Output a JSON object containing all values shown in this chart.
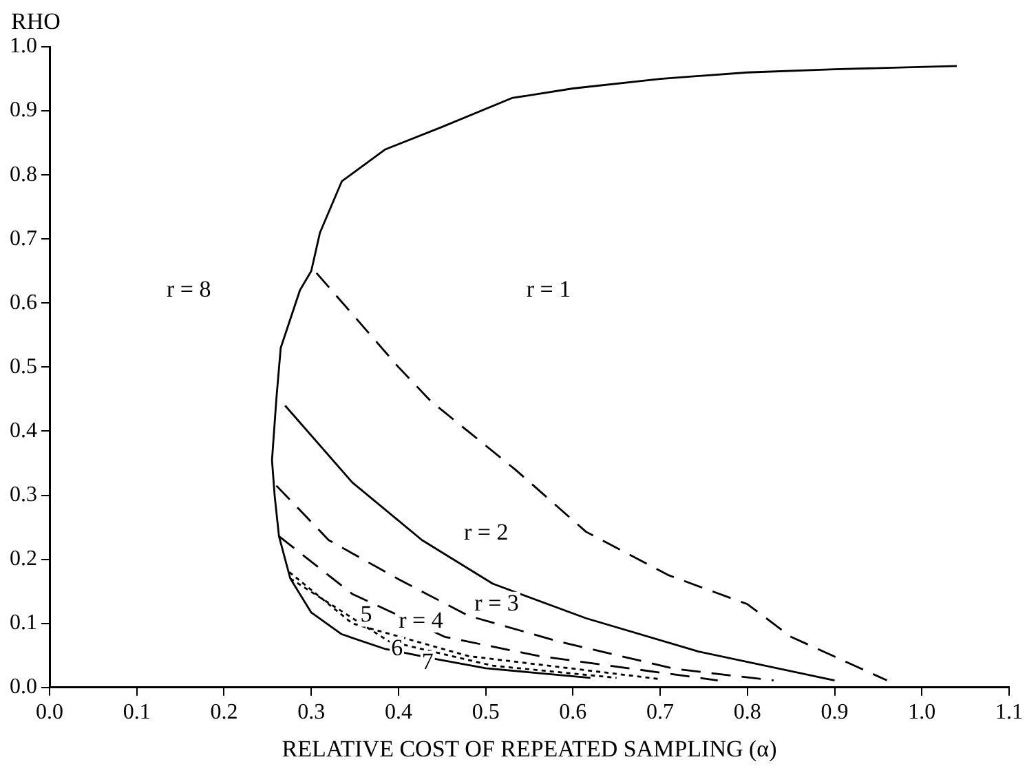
{
  "chart_data": {
    "type": "line",
    "xlabel": "RELATIVE COST OF REPEATED SAMPLING (α)",
    "ylabel": "RHO",
    "xlim": [
      0,
      1.1
    ],
    "ylim": [
      0,
      1.0
    ],
    "xticks": [
      {
        "value": 0,
        "label": "0.0"
      },
      0.1,
      0.2,
      0.3,
      0.4,
      0.5,
      0.6,
      0.7,
      0.8,
      0.9,
      {
        "value": 1,
        "label": "1.0"
      },
      1.1
    ],
    "yticks": [
      {
        "value": 0,
        "label": "0.0"
      },
      0.1,
      0.2,
      0.3,
      0.4,
      0.5,
      0.6,
      0.7,
      0.8,
      0.9,
      {
        "value": 1,
        "label": "1.0"
      }
    ],
    "grid": false,
    "legend": false,
    "marker": "none",
    "series": [
      {
        "color": "#000000",
        "line_style": "solid",
        "x": [
          0.62,
          0.5,
          0.44,
          0.385,
          0.335,
          0.3,
          0.276,
          0.263,
          0.258,
          0.255,
          0.26,
          0.265,
          0.287,
          0.3,
          0.31,
          0.335,
          0.385,
          0.45,
          0.53,
          0.6,
          0.7,
          0.8,
          0.9,
          1.04
        ],
        "values": [
          0.015,
          0.03,
          0.045,
          0.06,
          0.083,
          0.117,
          0.17,
          0.236,
          0.3,
          0.355,
          0.45,
          0.53,
          0.62,
          0.65,
          0.71,
          0.79,
          0.84,
          0.875,
          0.92,
          0.935,
          0.95,
          0.96,
          0.965,
          0.97
        ]
      },
      {
        "color": "#000000",
        "line_style": "dashed",
        "x": [
          0.306,
          0.4,
          0.437,
          0.534,
          0.615,
          0.71,
          0.8,
          0.85,
          0.96
        ],
        "values": [
          0.647,
          0.5,
          0.447,
          0.34,
          0.243,
          0.175,
          0.13,
          0.079,
          0.011
        ]
      },
      {
        "color": "#000000",
        "line_style": "solid",
        "x": [
          0.27,
          0.347,
          0.427,
          0.508,
          0.615,
          0.744,
          0.9
        ],
        "values": [
          0.44,
          0.32,
          0.23,
          0.162,
          0.108,
          0.056,
          0.011
        ]
      },
      {
        "color": "#000000",
        "line_style": "dashed",
        "x": [
          0.26,
          0.32,
          0.4,
          0.48,
          0.583,
          0.717,
          0.83
        ],
        "values": [
          0.315,
          0.23,
          0.169,
          0.112,
          0.072,
          0.029,
          0.011
        ]
      },
      {
        "color": "#000000",
        "line_style": "dashed",
        "x": [
          0.263,
          0.347,
          0.453,
          0.561,
          0.766
        ],
        "values": [
          0.236,
          0.146,
          0.079,
          0.049,
          0.011
        ]
      },
      {
        "color": "#000000",
        "line_style": "dotted",
        "x": [
          0.275,
          0.347,
          0.48,
          0.7
        ],
        "values": [
          0.18,
          0.1,
          0.049,
          0.013
        ]
      },
      {
        "color": "#000000",
        "line_style": "dotted",
        "x": [
          0.276,
          0.389,
          0.508,
          0.65
        ],
        "values": [
          0.17,
          0.072,
          0.034,
          0.015
        ]
      }
    ],
    "annotations": [
      "r = 8",
      "r = 1",
      "r = 2",
      "r = 3",
      "r = 4",
      "5",
      "6",
      "7"
    ]
  }
}
